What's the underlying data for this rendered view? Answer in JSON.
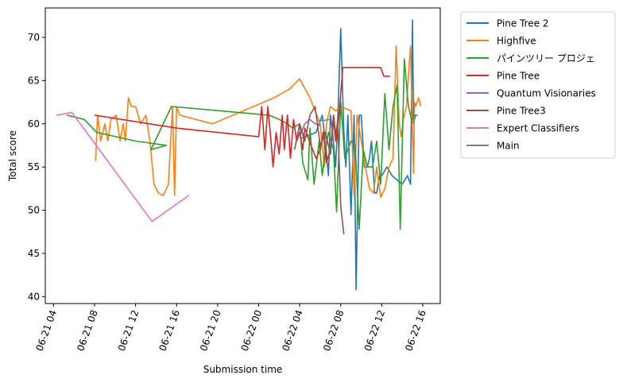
{
  "chart_data": {
    "type": "line",
    "xlabel": "Submission time",
    "ylabel": "Total score",
    "x_ticks": [
      "06-21 04",
      "06-21 08",
      "06-21 12",
      "06-21 16",
      "06-21 20",
      "06-22 00",
      "06-22 04",
      "06-22 08",
      "06-22 12",
      "06-22 16"
    ],
    "y_ticks": [
      40,
      45,
      50,
      55,
      60,
      65,
      70
    ],
    "xlim_hours": [
      3.2,
      41.7
    ],
    "ylim": [
      39.2,
      73.4
    ],
    "x_unit": "hours since 06-21 00:00",
    "legend_position": "outside top-right",
    "grid": false,
    "series": [
      {
        "name": "Pine Tree 2",
        "color": "#1f77b4",
        "x": [
          28.1,
          29.6,
          30.2,
          30.5,
          30.8,
          31.0,
          31.2,
          31.5,
          31.7,
          32.0,
          32.3,
          32.5,
          32.7,
          33.0,
          33.3,
          33.5,
          33.8,
          34.0,
          34.3,
          34.6,
          34.8,
          35.0,
          35.3,
          35.5,
          35.8,
          36.0,
          36.5,
          37.0,
          37.5,
          38.0,
          38.5,
          38.8,
          39.0,
          39.1,
          39.3
        ],
        "y": [
          58.3,
          59.0,
          61.0,
          58.0,
          54.0,
          61.0,
          59.0,
          55.0,
          60.0,
          71.0,
          59.0,
          55.0,
          61.0,
          49.5,
          61.0,
          40.8,
          61.0,
          61.0,
          55.0,
          55.0,
          56.0,
          58.0,
          52.0,
          52.0,
          54.0,
          54.0,
          55.0,
          54.0,
          53.5,
          53.0,
          54.0,
          53.0,
          72.0,
          60.0,
          61.0
        ]
      },
      {
        "name": "Highfive",
        "color": "#ff7f0e",
        "x": [
          8.1,
          8.3,
          8.6,
          9.0,
          9.3,
          9.6,
          10.1,
          10.5,
          10.8,
          11.0,
          11.3,
          11.6,
          12.0,
          12.5,
          13.0,
          13.4,
          13.8,
          14.2,
          14.7,
          15.2,
          15.6,
          15.8,
          16.0,
          16.3,
          19.5,
          25.5,
          27.0,
          28.0,
          29.0,
          30.0,
          30.4,
          30.6,
          31.0,
          31.5,
          32.0,
          33.0,
          33.3,
          33.6,
          34.0,
          34.4,
          34.8,
          35.2,
          35.5,
          35.9,
          36.3,
          36.7,
          37.1,
          37.4,
          37.7,
          37.9,
          38.1,
          38.4,
          38.8,
          39.1,
          39.2,
          39.3,
          39.6,
          39.8
        ],
        "y": [
          55.7,
          61.0,
          58.0,
          60.0,
          58.0,
          60.5,
          61.0,
          58.0,
          60.0,
          58.0,
          63.0,
          62.0,
          62.0,
          60.0,
          61.0,
          58.0,
          53.0,
          52.0,
          51.7,
          53.0,
          62.0,
          51.7,
          62.0,
          61.0,
          60.0,
          63.0,
          64.0,
          65.2,
          63.0,
          60.0,
          55.0,
          60.0,
          62.0,
          61.5,
          62.0,
          61.5,
          51.6,
          61.0,
          58.0,
          55.0,
          52.5,
          52.0,
          55.0,
          51.5,
          52.5,
          55.0,
          56.0,
          69.0,
          60.0,
          58.5,
          60.5,
          62.0,
          69.0,
          54.3,
          62.5,
          62.0,
          63.0,
          62.0
        ]
      },
      {
        "name": "パインツリー プロジェ",
        "color": "#2ca02c",
        "x": [
          5.3,
          7.0,
          8.2,
          12.0,
          15.0,
          13.5,
          15.5,
          25.0,
          26.0,
          26.8,
          27.3,
          28.0,
          28.3,
          28.8,
          29.0,
          29.4,
          29.9,
          30.2,
          30.4,
          30.8,
          31.3,
          31.6,
          32.0,
          32.4,
          33.0,
          33.4,
          33.8,
          34.2,
          34.6,
          35.1,
          35.5,
          35.9,
          36.3,
          36.7,
          37.1,
          37.5,
          37.8,
          38.2,
          38.6,
          38.9,
          39.2,
          39.5
        ],
        "y": [
          61.0,
          60.5,
          59.0,
          58.0,
          57.5,
          57.0,
          62.0,
          61.0,
          60.5,
          60.0,
          59.5,
          60.0,
          55.5,
          53.5,
          59.5,
          53.0,
          58.0,
          54.0,
          56.0,
          59.0,
          57.0,
          49.8,
          62.5,
          56.0,
          58.0,
          57.5,
          47.8,
          57.0,
          55.0,
          55.0,
          58.0,
          53.0,
          63.5,
          57.0,
          62.0,
          64.5,
          47.8,
          67.5,
          62.0,
          60.5,
          61.0,
          61.0
        ]
      },
      {
        "name": "Pine Tree",
        "color": "#d62728",
        "x": [
          8.0,
          16.0,
          24.0,
          24.3,
          24.6,
          24.9,
          25.2,
          25.4,
          25.7,
          26.0,
          26.3,
          26.5,
          26.8,
          27.1,
          27.4,
          27.7,
          28.0,
          28.3,
          28.5,
          29.1,
          29.6,
          30.0,
          30.3,
          30.6,
          31.0,
          31.3,
          31.6,
          31.9,
          32.2,
          32.5,
          32.8,
          33.1,
          33.4,
          33.8,
          34.3,
          34.7,
          35.0,
          35.3,
          35.6,
          35.9,
          36.2,
          36.5,
          36.8
        ],
        "y": [
          61.0,
          59.5,
          58.5,
          62.0,
          57.0,
          62.0,
          58.0,
          55.0,
          59.0,
          56.5,
          61.0,
          57.0,
          61.0,
          56.0,
          60.5,
          58.0,
          59.0,
          57.0,
          59.5,
          57.5,
          56.0,
          57.0,
          59.0,
          55.5,
          57.0,
          61.0,
          58.0,
          62.0,
          66.5,
          66.5,
          66.5,
          66.5,
          66.5,
          66.5,
          66.5,
          66.5,
          66.5,
          66.5,
          66.5,
          66.5,
          65.5,
          65.5,
          65.5
        ]
      },
      {
        "name": "Quantum Visionaries",
        "color": "#9467bd",
        "x": [
          28.0,
          28.5,
          29.0,
          29.5,
          30.0
        ],
        "y": [
          58.5,
          60.0,
          60.5,
          60.0,
          59.8
        ]
      },
      {
        "name": "Pine Tree3",
        "color": "#8c564b",
        "x": [
          27.5,
          28.0,
          28.5,
          29.0,
          29.5,
          30.0,
          30.5,
          31.0,
          31.3,
          31.5,
          31.7,
          32.0,
          32.3
        ],
        "y": [
          57.0,
          60.0,
          58.0,
          61.0,
          62.0,
          57.5,
          59.0,
          56.5,
          60.5,
          58.0,
          60.5,
          50.5,
          47.2
        ]
      },
      {
        "name": "Expert Classifiers",
        "color": "#e377c2",
        "x": [
          4.3,
          5.8,
          13.6,
          17.2
        ],
        "y": [
          61.0,
          61.3,
          48.7,
          51.7
        ]
      },
      {
        "name": "Main",
        "color": "#7f7f7f",
        "x": [
          29.8,
          31.0
        ],
        "y": [
          60.3,
          60.5
        ]
      }
    ]
  }
}
